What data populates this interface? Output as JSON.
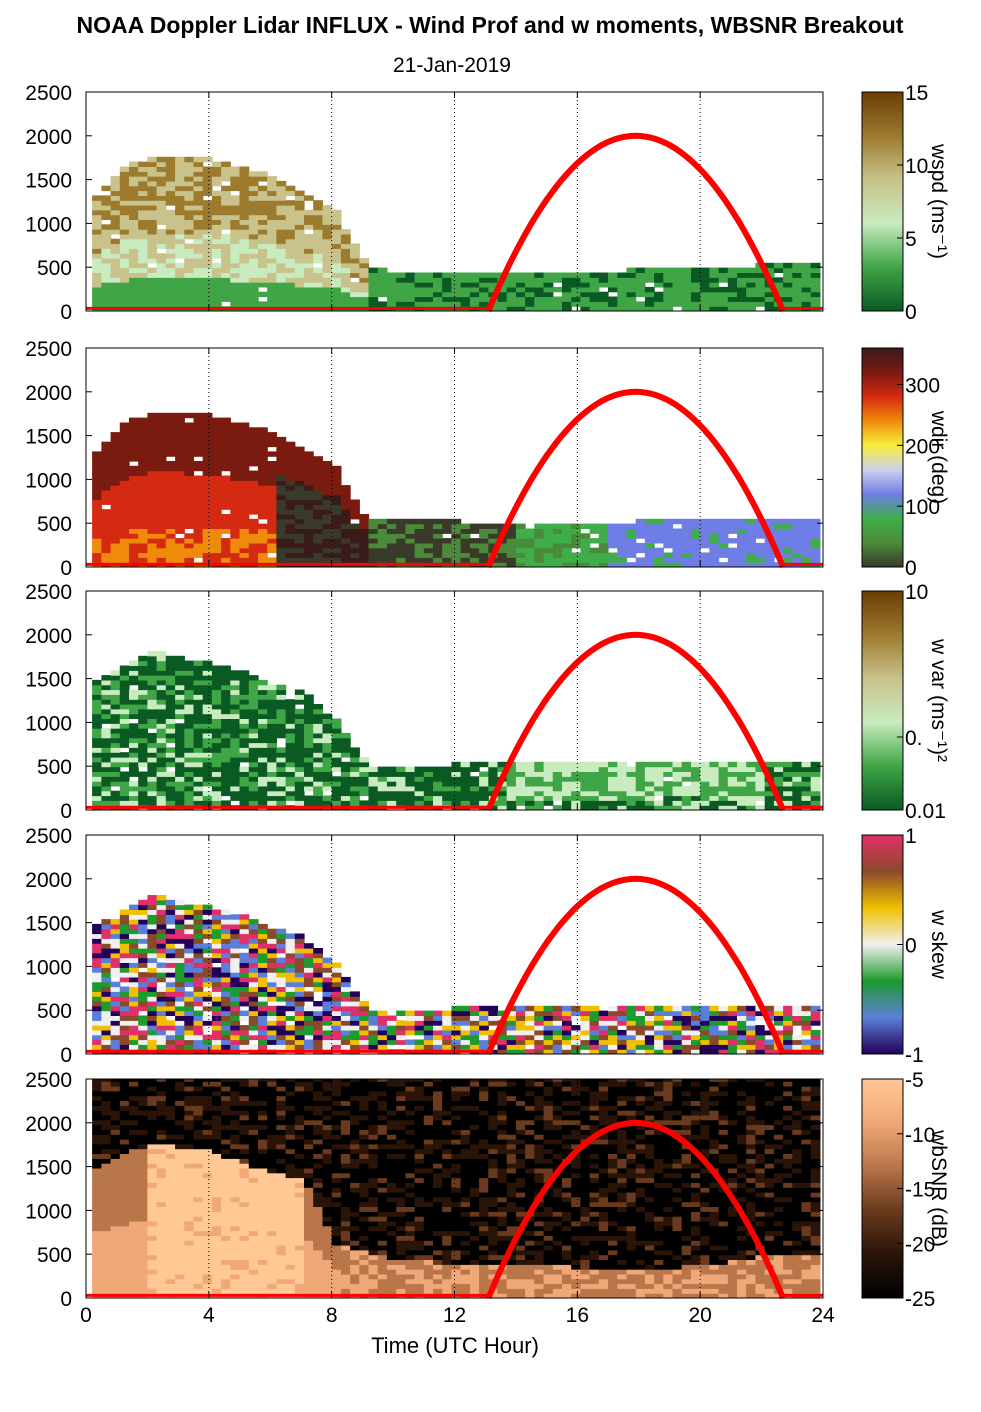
{
  "page": {
    "title": "NOAA Doppler Lidar INFLUX - Wind Prof and w moments, WBSNR Breakout",
    "subtitle": "21-Jan-2019"
  },
  "chart_data": {
    "type": "heatmap",
    "xlabel": "Time (UTC Hour)",
    "xlim": [
      0,
      24
    ],
    "xticks": [
      "0",
      "4",
      "8",
      "12",
      "16",
      "20",
      "24"
    ],
    "ylim": [
      0,
      2500
    ],
    "yticks": [
      "0",
      "500",
      "1000",
      "1500",
      "2000",
      "2500"
    ],
    "vertical_gridlines_dotted": [
      4,
      8,
      12,
      16,
      20,
      24
    ],
    "overlay": {
      "description_color": "#ff0000",
      "red_arc_points": [
        [
          13.1,
          0
        ],
        [
          14,
          700
        ],
        [
          15,
          1300
        ],
        [
          16,
          1750
        ],
        [
          17,
          1960
        ],
        [
          18,
          2000
        ],
        [
          19,
          1960
        ],
        [
          20,
          1750
        ],
        [
          21,
          1250
        ],
        [
          22,
          600
        ],
        [
          22.7,
          0
        ]
      ],
      "red_baseline": 30
    },
    "panels": [
      {
        "cblabel": "wspd (ms⁻¹)",
        "cbticks": [
          "15",
          "10",
          "5",
          "0"
        ],
        "cbrange": [
          0,
          15
        ],
        "colors": [
          "#0b5a24",
          "#3fa546",
          "#c8ebbf",
          "#c9c28b",
          "#9c7a2e",
          "#6b3d06"
        ],
        "echo_profile": [
          [
            0,
            1200
          ],
          [
            1,
            1600
          ],
          [
            2,
            1750
          ],
          [
            3,
            1750
          ],
          [
            4,
            1700
          ],
          [
            5,
            1600
          ],
          [
            6,
            1500
          ],
          [
            7,
            1300
          ],
          [
            8,
            1100
          ],
          [
            9,
            500
          ],
          [
            10,
            400
          ],
          [
            12,
            400
          ],
          [
            14,
            400
          ],
          [
            16,
            400
          ],
          [
            18,
            450
          ],
          [
            20,
            450
          ],
          [
            22,
            500
          ],
          [
            23.8,
            500
          ]
        ]
      },
      {
        "cblabel": "wdir (deg)",
        "cbticks": [
          "300",
          "200",
          "100",
          "0"
        ],
        "cbrange": [
          0,
          360
        ],
        "colors": [
          "#3a3a2a",
          "#4a8a3a",
          "#3fae4a",
          "#6f7de6",
          "#cfd0ee",
          "#f5ee3a",
          "#f08a0a",
          "#d42a12",
          "#7a1b10",
          "#3a1b1b"
        ],
        "echo_profile": [
          [
            0,
            1200
          ],
          [
            1,
            1600
          ],
          [
            2,
            1750
          ],
          [
            3,
            1750
          ],
          [
            4,
            1700
          ],
          [
            5,
            1600
          ],
          [
            6,
            1500
          ],
          [
            7,
            1300
          ],
          [
            8,
            1100
          ],
          [
            9,
            500
          ],
          [
            10,
            500
          ],
          [
            12,
            500
          ],
          [
            14,
            450
          ],
          [
            16,
            450
          ],
          [
            18,
            500
          ],
          [
            20,
            500
          ],
          [
            22,
            500
          ],
          [
            23.8,
            500
          ]
        ]
      },
      {
        "cblabel": "w var (ms⁻¹)²",
        "cbticks": [
          "10",
          "0.",
          "0.01"
        ],
        "cbrange": [
          0.01,
          10
        ],
        "log_scale": true,
        "colors": [
          "#0b5a24",
          "#3fa546",
          "#c8ebbf",
          "#c9c28b",
          "#9c7a2e",
          "#6b3d06"
        ],
        "echo_profile": [
          [
            0,
            1400
          ],
          [
            1,
            1600
          ],
          [
            2,
            1800
          ],
          [
            3,
            1700
          ],
          [
            4,
            1650
          ],
          [
            5,
            1550
          ],
          [
            6,
            1400
          ],
          [
            7,
            1300
          ],
          [
            8,
            1000
          ],
          [
            9,
            500
          ],
          [
            10,
            450
          ],
          [
            12,
            500
          ],
          [
            14,
            500
          ],
          [
            16,
            500
          ],
          [
            18,
            550
          ],
          [
            20,
            550
          ],
          [
            22,
            500
          ],
          [
            24,
            550
          ]
        ]
      },
      {
        "cblabel": "w skew",
        "cbticks": [
          "1",
          "0",
          "-1"
        ],
        "cbrange": [
          -1,
          1
        ],
        "colors": [
          "#23005a",
          "#5b7fd8",
          "#1e9a2e",
          "#f0f0f0",
          "#f0c000",
          "#8a4a2a",
          "#e0306a"
        ],
        "echo_profile": [
          [
            0,
            1400
          ],
          [
            1,
            1600
          ],
          [
            2,
            1800
          ],
          [
            3,
            1700
          ],
          [
            4,
            1650
          ],
          [
            5,
            1550
          ],
          [
            6,
            1400
          ],
          [
            7,
            1300
          ],
          [
            8,
            1000
          ],
          [
            9,
            500
          ],
          [
            10,
            450
          ],
          [
            12,
            500
          ],
          [
            14,
            500
          ],
          [
            16,
            500
          ],
          [
            18,
            500
          ],
          [
            20,
            500
          ],
          [
            22,
            500
          ],
          [
            24,
            500
          ]
        ]
      },
      {
        "cblabel": "wbSNR (dB)",
        "cbticks": [
          "-5",
          "-10",
          "-15",
          "-20",
          "-25"
        ],
        "cbrange": [
          -25,
          -5
        ],
        "colors": [
          "#000000",
          "#2a1408",
          "#6a3a1e",
          "#b8764a",
          "#f0a878",
          "#ffc894"
        ],
        "echo_profile": [
          [
            0,
            1400
          ],
          [
            1,
            1600
          ],
          [
            2,
            1750
          ],
          [
            3,
            1700
          ],
          [
            4,
            1650
          ],
          [
            5,
            1500
          ],
          [
            6,
            1400
          ],
          [
            7,
            1300
          ],
          [
            8,
            600
          ],
          [
            10,
            400
          ],
          [
            14,
            350
          ],
          [
            18,
            300
          ],
          [
            20,
            350
          ],
          [
            22,
            450
          ],
          [
            24,
            500
          ]
        ]
      }
    ]
  }
}
